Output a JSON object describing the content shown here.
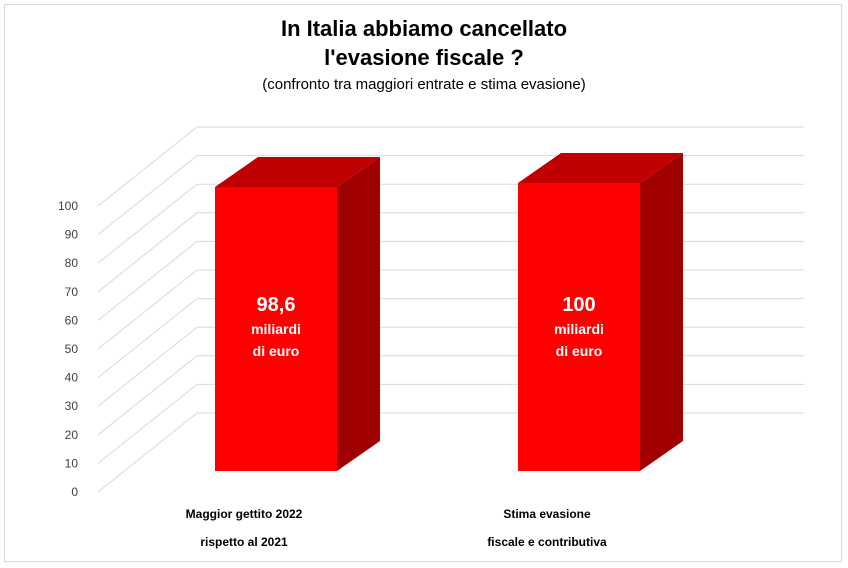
{
  "title_line1": "In Italia abbiamo cancellato",
  "title_line2": "l'evasione fiscale ?",
  "subtitle": "(confronto tra maggiori entrate e stima evasione)",
  "colors": {
    "bar_front": "#ff0000",
    "bar_top": "#c00000",
    "bar_side": "#a00000",
    "grid": "#d9d9d9",
    "axis_text": "#404040"
  },
  "chart_data": {
    "type": "bar",
    "title": "In Italia abbiamo cancellato l'evasione fiscale ?",
    "subtitle": "(confronto tra maggiori entrate e stima evasione)",
    "categories": [
      [
        "Maggior gettito 2022",
        "rispetto al 2021"
      ],
      [
        "Stima evasione",
        "fiscale e contributiva"
      ]
    ],
    "values": [
      98.6,
      100
    ],
    "data_labels": [
      {
        "value": "98,6",
        "unit_line1": "miliardi",
        "unit_line2": "di euro"
      },
      {
        "value": "100",
        "unit_line1": "miliardi",
        "unit_line2": "di euro"
      }
    ],
    "yticks": [
      "0",
      "10",
      "20",
      "30",
      "40",
      "50",
      "60",
      "70",
      "80",
      "90",
      "100"
    ],
    "ylim": [
      0,
      100
    ],
    "grid": true,
    "style": "3d"
  }
}
